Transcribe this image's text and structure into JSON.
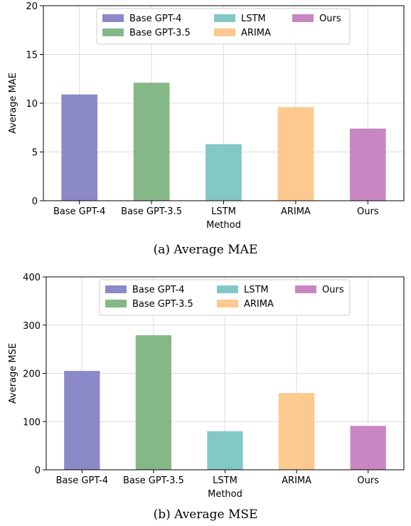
{
  "chart_data": [
    {
      "type": "bar",
      "caption": "(a)  Average MAE",
      "categories": [
        "Base GPT-4",
        "Base GPT-3.5",
        "LSTM",
        "ARIMA",
        "Ours"
      ],
      "values": [
        10.9,
        12.1,
        5.8,
        9.6,
        7.4
      ],
      "colors": [
        "#8b89c7",
        "#85b887",
        "#82c8c5",
        "#fdc98e",
        "#c887c3"
      ],
      "xlabel": "Method",
      "ylabel": "Average MAE",
      "ylim": [
        0,
        20
      ],
      "yticks": [
        0,
        5,
        10,
        15,
        20
      ],
      "grid": true,
      "legend": {
        "placement": "top-center",
        "columns": 3,
        "entries": [
          "Base GPT-4",
          "Base GPT-3.5",
          "LSTM",
          "ARIMA",
          "Ours"
        ]
      }
    },
    {
      "type": "bar",
      "caption": "(b)  Average MSE",
      "categories": [
        "Base GPT-4",
        "Base GPT-3.5",
        "LSTM",
        "ARIMA",
        "Ours"
      ],
      "values": [
        205,
        279,
        80,
        159,
        91
      ],
      "colors": [
        "#8b89c7",
        "#85b887",
        "#82c8c5",
        "#fdc98e",
        "#c887c3"
      ],
      "xlabel": "Method",
      "ylabel": "Average MSE",
      "ylim": [
        0,
        400
      ],
      "yticks": [
        0,
        100,
        200,
        300,
        400
      ],
      "grid": true,
      "legend": {
        "placement": "top-center",
        "columns": 3,
        "entries": [
          "Base GPT-4",
          "Base GPT-3.5",
          "LSTM",
          "ARIMA",
          "Ours"
        ]
      }
    }
  ]
}
